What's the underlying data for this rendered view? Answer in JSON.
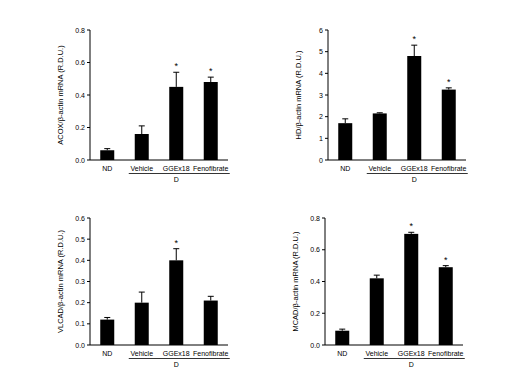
{
  "chart_data": [
    {
      "type": "bar",
      "y_label": "ACOX/β-actin mRNA (R.D.U.)",
      "categories": [
        "ND",
        "Vehicle",
        "GGEx18",
        "Fenofibrate"
      ],
      "values": [
        0.06,
        0.16,
        0.45,
        0.48
      ],
      "errors": [
        0.01,
        0.05,
        0.09,
        0.03
      ],
      "significance": [
        null,
        null,
        "*",
        "*"
      ],
      "group_label": "D",
      "color": "#000000",
      "ylim": [
        0,
        0.8
      ],
      "yticks": [
        {
          "value": 0,
          "label": "0.0"
        },
        0.2,
        0.4,
        0.6,
        0.8
      ]
    },
    {
      "type": "bar",
      "y_label": "HD/β-actin mRNA (R.D.U.)",
      "categories": [
        "ND",
        "Vehicle",
        "GGEx18",
        "Fenofibrate"
      ],
      "values": [
        1.7,
        2.15,
        4.8,
        3.25
      ],
      "errors": [
        0.2,
        0.03,
        0.5,
        0.08
      ],
      "significance": [
        null,
        null,
        "*",
        "*"
      ],
      "group_label": "D",
      "color": "#000000",
      "ylim": [
        0,
        6
      ],
      "yticks": [
        0,
        1,
        2,
        3,
        4,
        5,
        6
      ]
    },
    {
      "type": "bar",
      "y_label": "VLCAD/β-actin mRNA (R.D.U.)",
      "categories": [
        "ND",
        "Vehicle",
        "GGEx18",
        "Fenofibrate"
      ],
      "values": [
        0.12,
        0.2,
        0.4,
        0.21
      ],
      "errors": [
        0.01,
        0.05,
        0.055,
        0.02
      ],
      "significance": [
        null,
        null,
        "*",
        null
      ],
      "group_label": "D",
      "color": "#000000",
      "ylim": [
        0,
        0.6
      ],
      "yticks": [
        {
          "value": 0,
          "label": "0.0"
        },
        0.1,
        0.2,
        0.3,
        0.4,
        0.5,
        0.6
      ]
    },
    {
      "type": "bar",
      "y_label": "MCAD/β-actin mRNA (R.D.U.)",
      "categories": [
        "ND",
        "Vehicle",
        "GGEx18",
        "Fenofibrate"
      ],
      "values": [
        0.09,
        0.42,
        0.7,
        0.49
      ],
      "errors": [
        0.01,
        0.02,
        0.01,
        0.01
      ],
      "significance": [
        null,
        null,
        "*",
        "*"
      ],
      "group_label": "D",
      "color": "#000000",
      "ylim": [
        0,
        0.8
      ],
      "yticks": [
        {
          "value": 0,
          "label": "0.0"
        },
        0.2,
        0.4,
        0.6,
        0.8
      ]
    }
  ]
}
